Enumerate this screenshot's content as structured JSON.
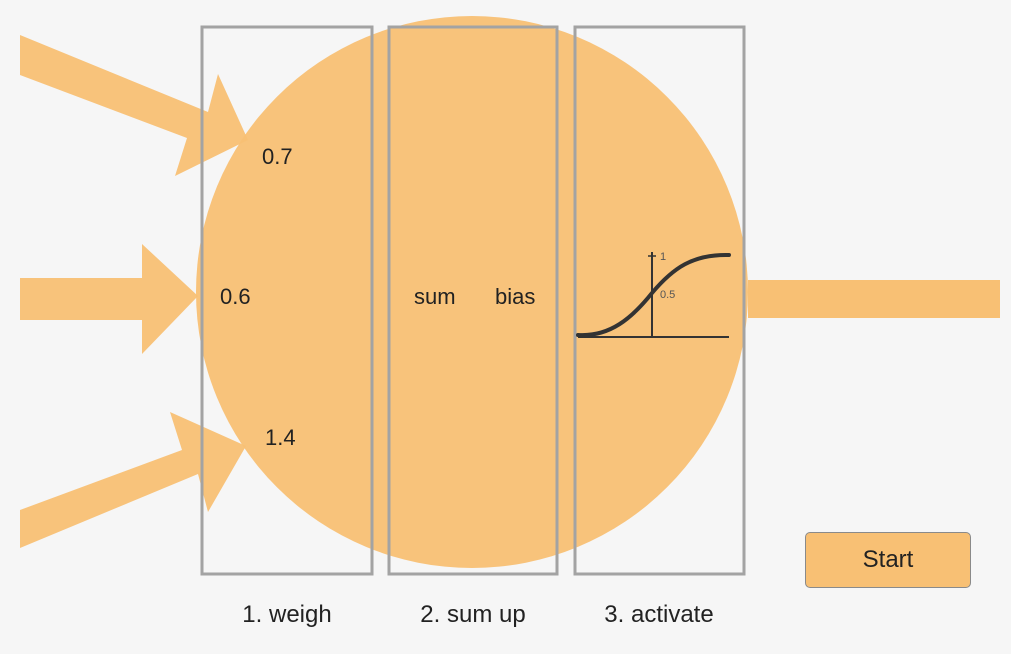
{
  "colors": {
    "background": "#f6f6f6",
    "neuron_fill": "#f8c074",
    "panel_border": "#a3a3a3",
    "curve": "#333333"
  },
  "inputs": {
    "weights": [
      "0.7",
      "0.6",
      "1.4"
    ]
  },
  "stages": [
    {
      "label": "1. weigh"
    },
    {
      "label": "2. sum up"
    },
    {
      "label": "3. activate"
    }
  ],
  "sum_stage": {
    "sum_label": "sum",
    "bias_label": "bias"
  },
  "activation": {
    "function": "sigmoid",
    "tick_top": "1",
    "tick_mid": "0.5"
  },
  "controls": {
    "start_label": "Start"
  }
}
